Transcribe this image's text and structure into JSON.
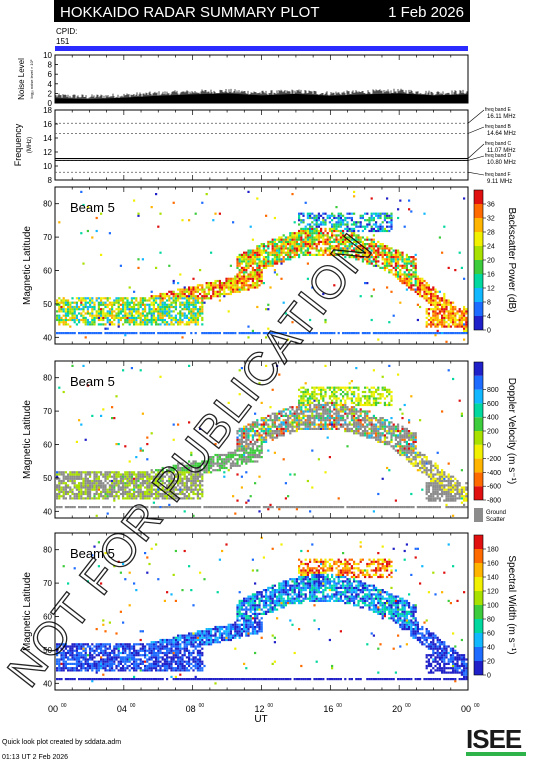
{
  "header": {
    "title": "HOKKAIDO RADAR SUMMARY PLOT",
    "date": "1 Feb 2026",
    "cpid_label": "CPID:",
    "cpid_value": "151"
  },
  "colors": {
    "header_bg": "#000000",
    "header_text": "#ffffff",
    "cpid_bar": "#2b2bff",
    "ground_scatter": "#8c8c8c",
    "watermark": "#000000"
  },
  "noise_panel": {
    "ylabel": "Noise Level",
    "ylabel_sub": "log₁₀ noise level × 10⁶",
    "yticks": [
      "0",
      "2",
      "4",
      "6",
      "8",
      "10"
    ]
  },
  "freq_panel": {
    "ylabel": "Frequency",
    "ylabel_unit": "(MHz)",
    "yticks": [
      "8",
      "10",
      "12",
      "14",
      "16",
      "18"
    ],
    "bands": [
      {
        "label": "freq band E",
        "value": "16.11 MHz"
      },
      {
        "label": "freq band B",
        "value": "14.64 MHz"
      },
      {
        "label": "freq band C",
        "value": "11.07 MHz"
      },
      {
        "label": "freq band D",
        "value": "10.80 MHz"
      },
      {
        "label": "freq band F",
        "value": "9.11 MHz"
      }
    ]
  },
  "beam_label": "Beam  5",
  "latitude_label": "Magnetic Latitude",
  "lat_ticks": [
    "40",
    "50",
    "60",
    "70",
    "80"
  ],
  "x_axis": {
    "ticks": [
      "00",
      "04",
      "08",
      "12",
      "16",
      "20",
      "00"
    ],
    "tick_sup": "00",
    "label": "UT"
  },
  "watermark": "NOT FOR PUBLICATION",
  "footer": {
    "credit": "Quick look plot created by sddata.adm",
    "timestamp": "01:13 UT  2 Feb 2026",
    "logo": "ISEE"
  },
  "chart_data": [
    {
      "type": "area",
      "panel": "noise",
      "xlabel": "",
      "ylabel": "Noise Level",
      "xlim": [
        0,
        24
      ],
      "ylim": [
        0,
        10
      ],
      "x": [
        0,
        2,
        4,
        6,
        8,
        10,
        12,
        14,
        16,
        18,
        20,
        22,
        24
      ],
      "values": [
        1.0,
        0.8,
        1.1,
        1.5,
        1.8,
        2.0,
        1.6,
        1.9,
        1.5,
        1.8,
        2.0,
        1.6,
        1.8
      ]
    },
    {
      "type": "scatter",
      "panel": "frequency",
      "ylabel": "Frequency",
      "xlim": [
        0,
        24
      ],
      "ylim": [
        8,
        18
      ],
      "dashed_levels": [
        16.11,
        14.64,
        11.07,
        10.8,
        9.11
      ],
      "solid_levels": [
        11.07,
        10.8
      ]
    },
    {
      "type": "heatmap",
      "panel": "power",
      "label": "Beam  5",
      "xlabel": "",
      "ylabel": "Magnetic Latitude",
      "xlim": [
        0,
        24
      ],
      "ylim": [
        38,
        85
      ],
      "colorbar": {
        "label": "Backscatter Power (dB)",
        "ticks": [
          "0",
          "4",
          "8",
          "12",
          "16",
          "20",
          "24",
          "28",
          "32",
          "36"
        ],
        "colors": [
          "#2020c8",
          "#1e6cff",
          "#12b8ff",
          "#00d8a0",
          "#3ccc3c",
          "#a8e000",
          "#f0f000",
          "#ffb400",
          "#ff6a00",
          "#e01010"
        ]
      }
    },
    {
      "type": "heatmap",
      "panel": "velocity",
      "label": "Beam  5",
      "xlabel": "",
      "ylabel": "Magnetic Latitude",
      "xlim": [
        0,
        24
      ],
      "ylim": [
        38,
        85
      ],
      "colorbar": {
        "label": "Doppler Velocity (m s⁻¹)",
        "ticks": [
          "-800",
          "-600",
          "-400",
          "-200",
          "0",
          "200",
          "400",
          "600",
          "800"
        ],
        "colors": [
          "#e01010",
          "#ff6a00",
          "#ffb400",
          "#f0f000",
          "#a8e000",
          "#3ccc3c",
          "#00d8a0",
          "#12b8ff",
          "#1e6cff",
          "#2020c8"
        ],
        "extra": "Ground Scatter"
      }
    },
    {
      "type": "heatmap",
      "panel": "width",
      "label": "Beam  5",
      "xlabel": "UT",
      "ylabel": "Magnetic Latitude",
      "xlim": [
        0,
        24
      ],
      "ylim": [
        38,
        85
      ],
      "colorbar": {
        "label": "Spectral Width (m s⁻¹)",
        "ticks": [
          "0",
          "20",
          "40",
          "60",
          "80",
          "100",
          "120",
          "140",
          "160",
          "180"
        ],
        "colors": [
          "#2020c8",
          "#1e6cff",
          "#12b8ff",
          "#00d8a0",
          "#3ccc3c",
          "#a8e000",
          "#f0f000",
          "#ffb400",
          "#ff6a00",
          "#e01010"
        ]
      }
    }
  ]
}
